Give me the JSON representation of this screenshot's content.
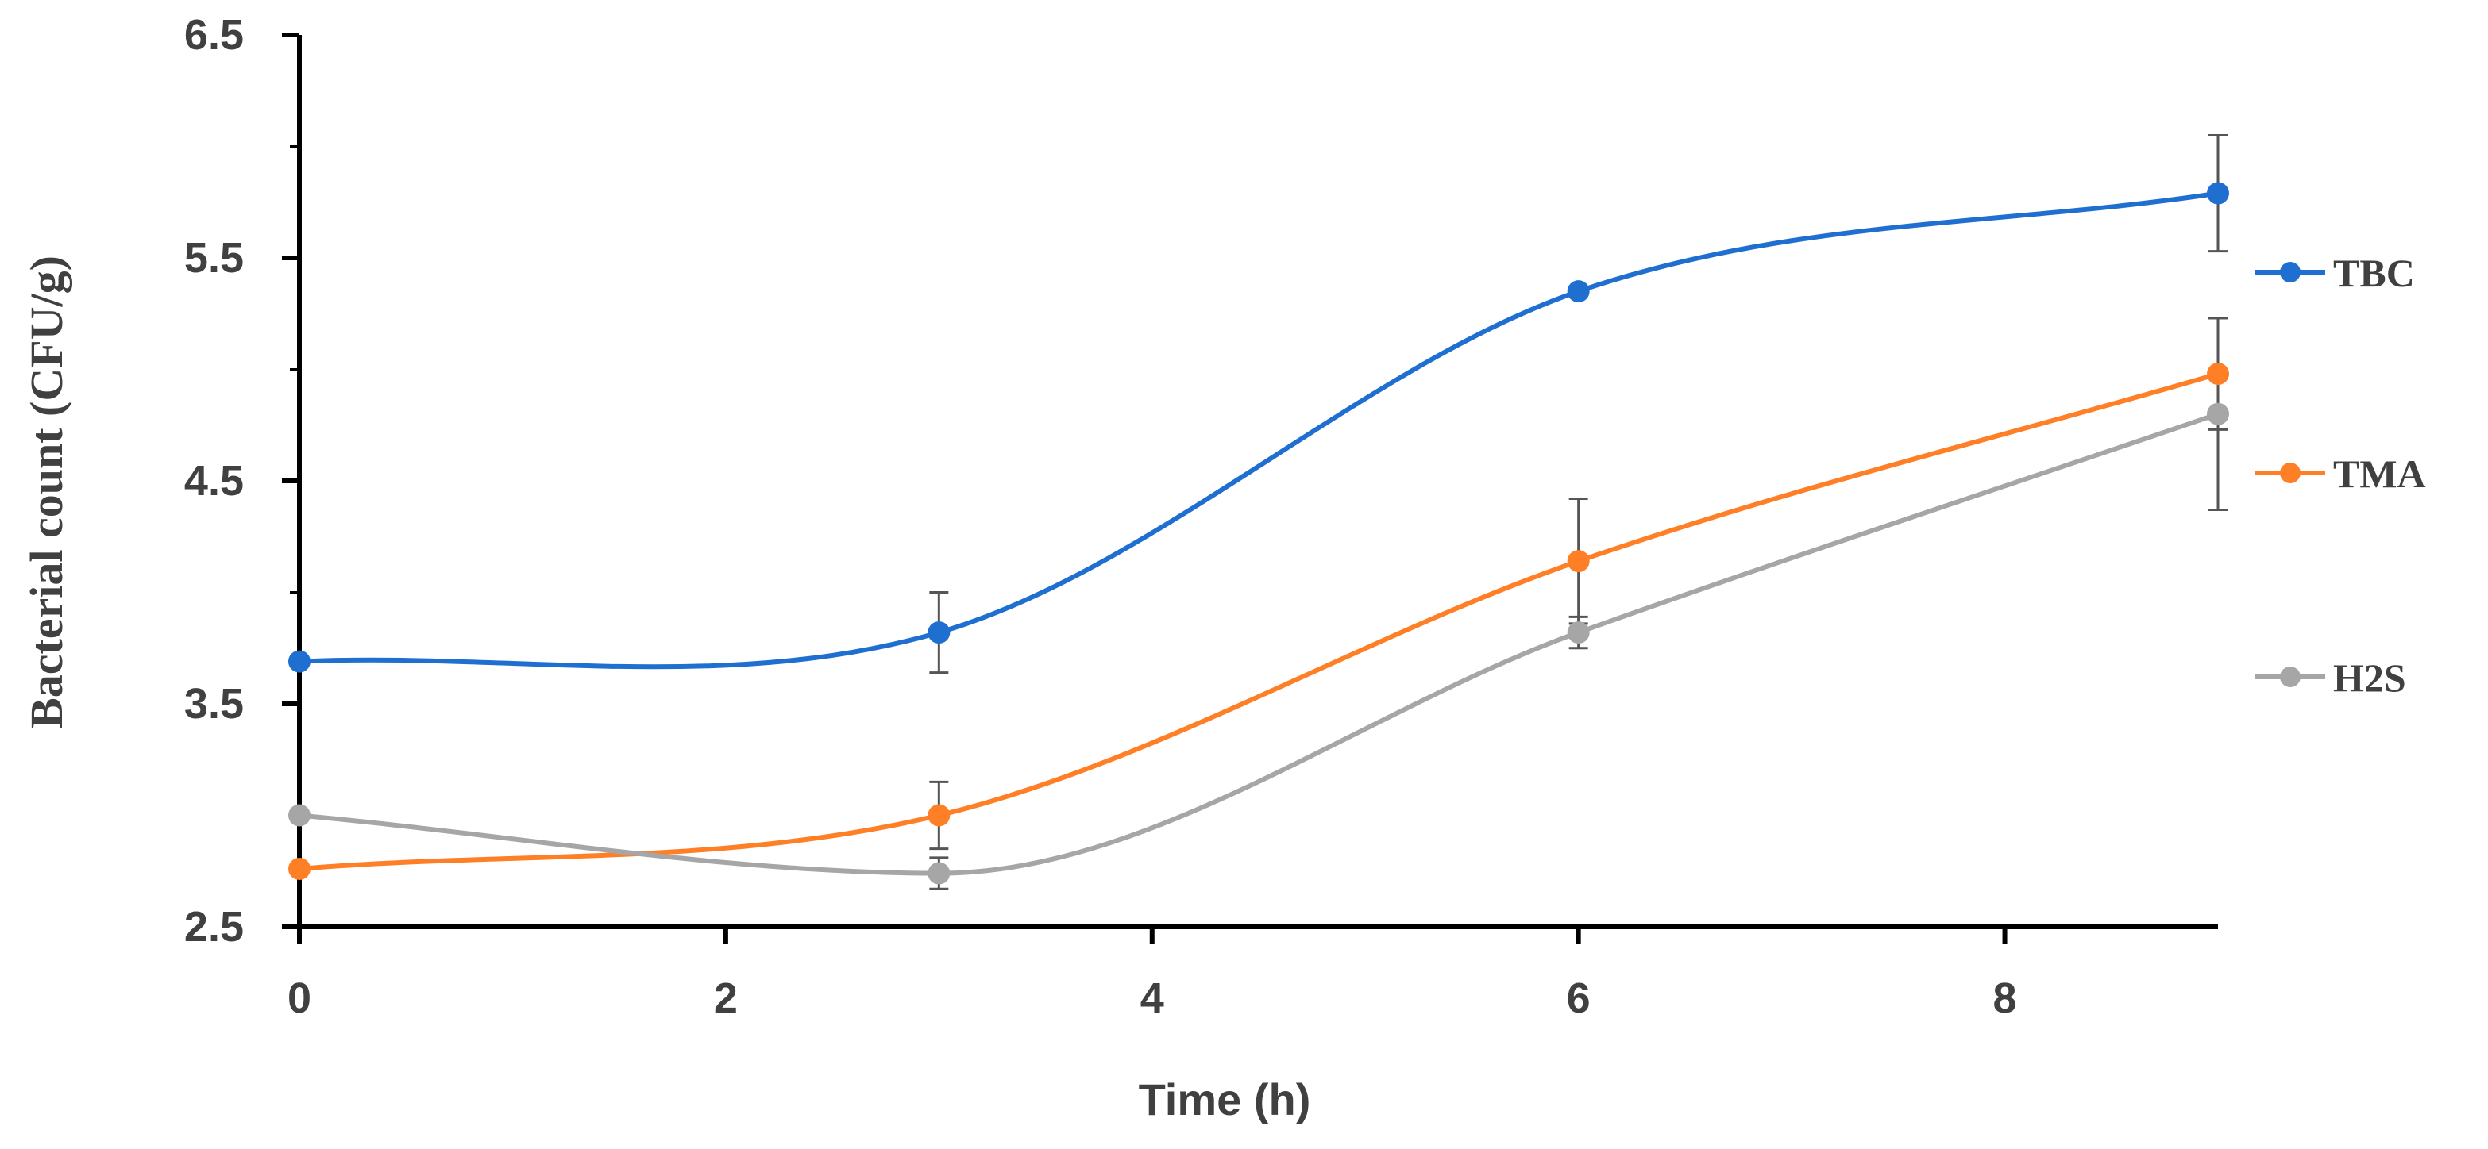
{
  "chart_data": {
    "type": "line",
    "title": "",
    "xlabel": "Time (h)",
    "ylabel": "Bacterial count (CFU/g)",
    "xlim": [
      0,
      9
    ],
    "ylim": [
      2.5,
      6.5
    ],
    "x_ticks": [
      "0",
      "2",
      "4",
      "6",
      "8"
    ],
    "x_tick_values": [
      0,
      2,
      4,
      6,
      8
    ],
    "y_ticks": [
      "2.5",
      "3.5",
      "4.5",
      "5.5",
      "6.5"
    ],
    "y_tick_values": [
      2.5,
      3.5,
      4.5,
      5.5,
      6.5
    ],
    "x": [
      0,
      3,
      6,
      9
    ],
    "legend_position": "right",
    "series": [
      {
        "name": "TBC",
        "color": "#1f6fd1",
        "values": [
          3.69,
          3.82,
          5.35,
          5.79
        ],
        "errors": [
          0,
          0.18,
          0,
          0.26
        ]
      },
      {
        "name": "TMA",
        "color": "#ff7f27",
        "values": [
          2.76,
          3.0,
          4.14,
          4.98
        ],
        "errors": [
          0,
          0.15,
          0.28,
          0.25
        ]
      },
      {
        "name": "H2S",
        "color": "#a6a6a6",
        "values": [
          3.0,
          2.74,
          3.82,
          4.8
        ],
        "errors": [
          0,
          0.07,
          0.07,
          0.43
        ]
      }
    ]
  }
}
